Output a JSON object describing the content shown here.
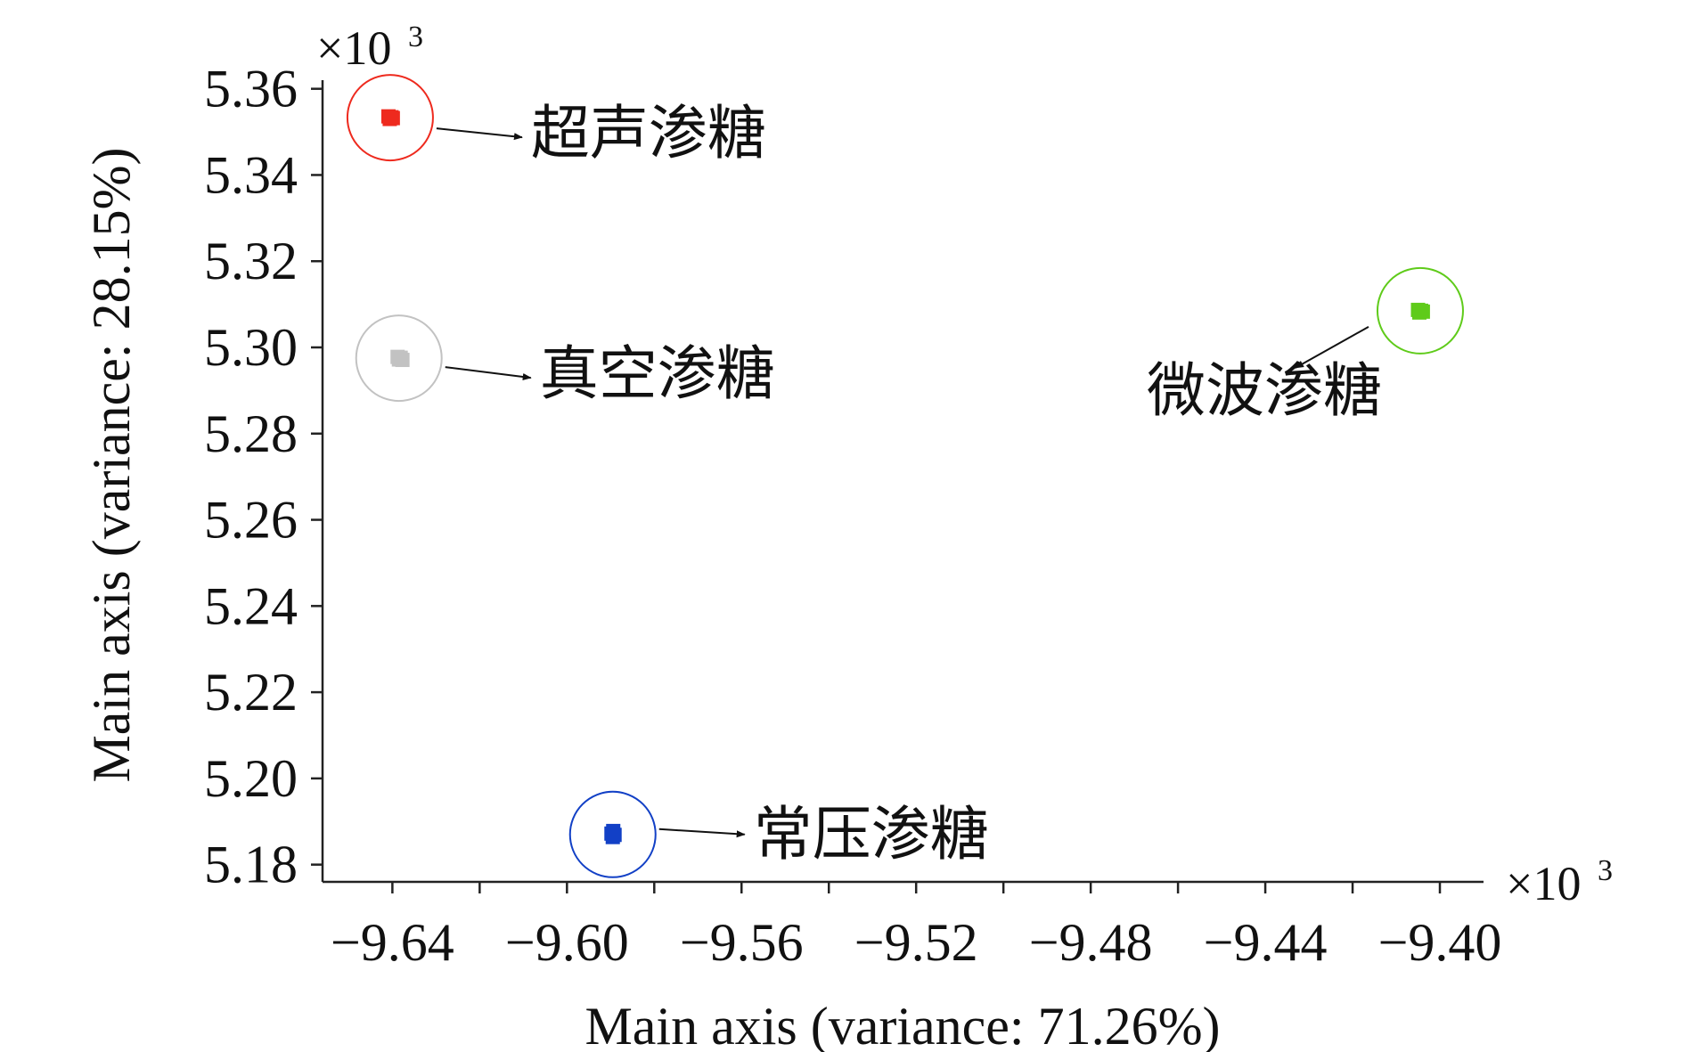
{
  "chart_data": {
    "type": "scatter",
    "title": "",
    "xlabel": "Main axis (variance: 71.26%)",
    "ylabel": "Main axis (variance: 28.15%)",
    "x_multiplier": {
      "base": "×10",
      "exp": "3"
    },
    "y_multiplier": {
      "base": "×10",
      "exp": "3"
    },
    "xlim": [
      -9.656,
      -9.39
    ],
    "ylim": [
      5.176,
      5.362
    ],
    "xticks": [
      -9.64,
      -9.6,
      -9.56,
      -9.52,
      -9.48,
      -9.44,
      -9.4
    ],
    "xtick_labels": [
      "−9.64",
      "−9.60",
      "−9.56",
      "−9.52",
      "−9.48",
      "−9.44",
      "−9.40"
    ],
    "minor_xticks": [
      -9.62,
      -9.58,
      -9.54,
      -9.5,
      -9.46,
      -9.42
    ],
    "yticks": [
      5.18,
      5.2,
      5.22,
      5.24,
      5.26,
      5.28,
      5.3,
      5.32,
      5.34,
      5.36
    ],
    "ytick_labels": [
      "5.18",
      "5.20",
      "5.22",
      "5.24",
      "5.26",
      "5.28",
      "5.30",
      "5.32",
      "5.34",
      "5.36"
    ],
    "grid": false,
    "groups": [
      {
        "label": "超声渗糖",
        "color": "#ee2a1e",
        "center": [
          -9.6405,
          5.3533
        ],
        "points": [
          [
            -9.6409,
            5.3536
          ],
          [
            -9.6402,
            5.3534
          ],
          [
            -9.6406,
            5.353
          ],
          [
            -9.6399,
            5.3532
          ]
        ]
      },
      {
        "label": "真空渗糖",
        "color": "#c2c2c2",
        "center": [
          -9.6385,
          5.2975
        ],
        "points": [
          [
            -9.6388,
            5.2978
          ],
          [
            -9.6381,
            5.2976
          ],
          [
            -9.6385,
            5.2972
          ],
          [
            -9.6377,
            5.2971
          ]
        ]
      },
      {
        "label": "微波渗糖",
        "color": "#5fcb1a",
        "center": [
          -9.4045,
          5.3085
        ],
        "points": [
          [
            -9.405,
            5.3087
          ],
          [
            -9.4043,
            5.3085
          ],
          [
            -9.4047,
            5.3081
          ],
          [
            -9.4039,
            5.3083
          ]
        ]
      },
      {
        "label": "常压渗糖",
        "color": "#1240c6",
        "center": [
          -9.5895,
          5.187
        ],
        "points": [
          [
            -9.5894,
            5.1878
          ],
          [
            -9.5898,
            5.1872
          ],
          [
            -9.5891,
            5.1869
          ],
          [
            -9.5895,
            5.1864
          ]
        ]
      }
    ]
  }
}
